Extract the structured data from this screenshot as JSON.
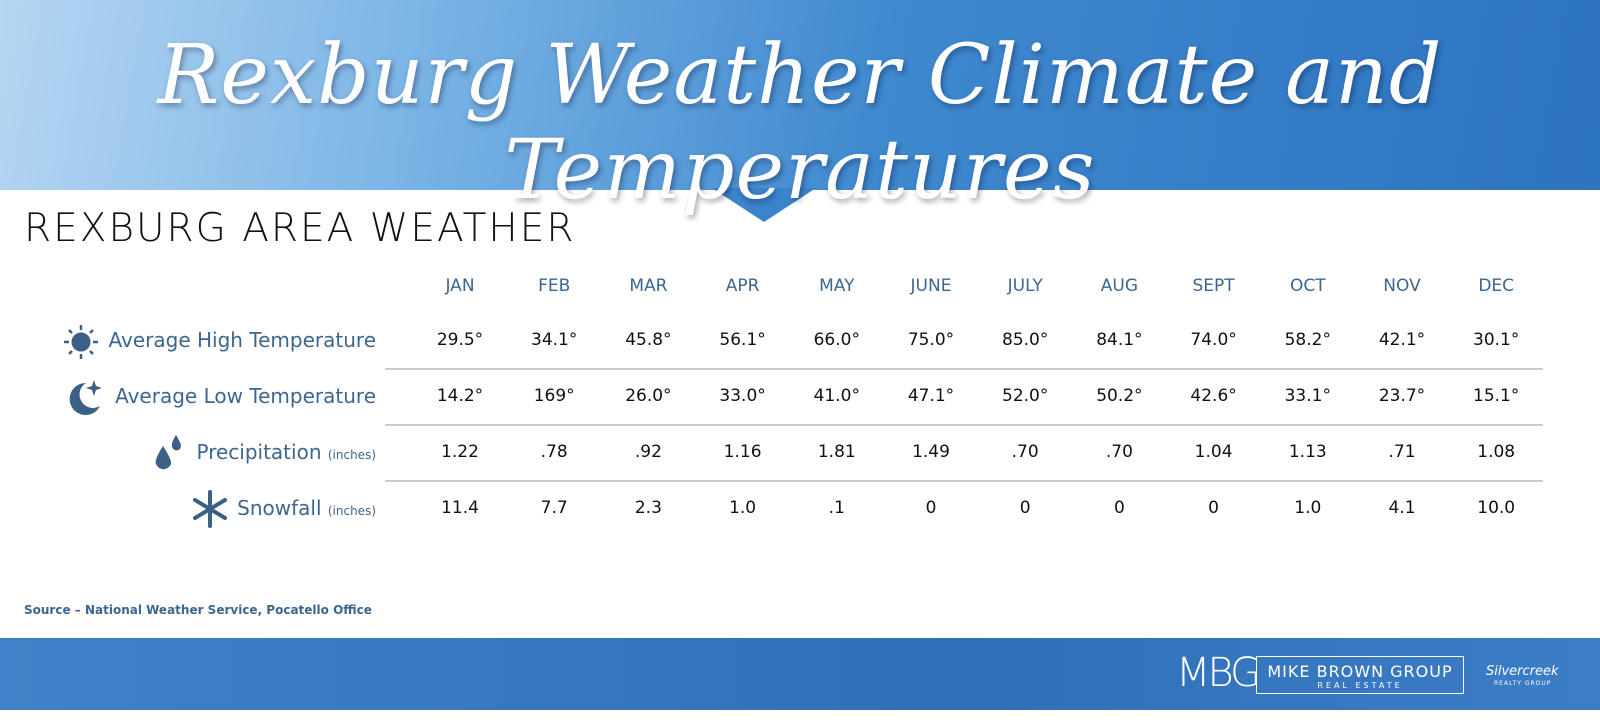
{
  "header": {
    "title": "Rexburg Weather Climate and Temperatures"
  },
  "section_title": "REXBURG AREA WEATHER",
  "table": {
    "columns": [
      "JAN",
      "FEB",
      "MAR",
      "APR",
      "MAY",
      "JUNE",
      "JULY",
      "AUG",
      "SEPT",
      "OCT",
      "NOV",
      "DEC"
    ],
    "rows": [
      {
        "label": "Average High Temperature",
        "cells": [
          "29.5°",
          "34.1°",
          "45.8°",
          "56.1°",
          "66.0°",
          "75.0°",
          "85.0°",
          "84.1°",
          "74.0°",
          "58.2°",
          "42.1°",
          "30.1°"
        ]
      },
      {
        "label": "Average Low Temperature",
        "cells": [
          "14.2°",
          "169°",
          "26.0°",
          "33.0°",
          "41.0°",
          "47.1°",
          "52.0°",
          "50.2°",
          "42.6°",
          "33.1°",
          "23.7°",
          "15.1°"
        ]
      },
      {
        "label": "Precipitation",
        "unit": "(inches)",
        "cells": [
          "1.22",
          ".78",
          ".92",
          "1.16",
          "1.81",
          "1.49",
          ".70",
          ".70",
          "1.04",
          "1.13",
          ".71",
          "1.08"
        ]
      },
      {
        "label": "Snowfall",
        "unit": "(inches)",
        "cells": [
          "11.4",
          "7.7",
          "2.3",
          "1.0",
          ".1",
          "0",
          "0",
          "0",
          "0",
          "1.0",
          "4.1",
          "10.0"
        ]
      }
    ]
  },
  "source": "Source – National Weather Service, Pocatello Office",
  "footer": {
    "logo": "MBG",
    "brand": "MIKE BROWN GROUP",
    "brand_sub": "REAL ESTATE",
    "partner": "Silvercreek",
    "partner_sub": "REALTY GROUP"
  }
}
